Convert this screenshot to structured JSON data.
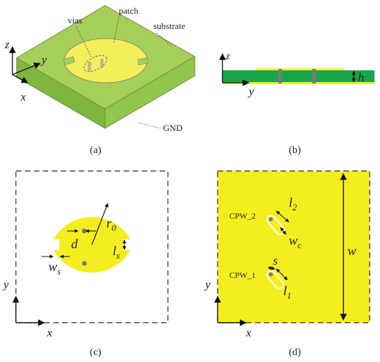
{
  "panel_a": {
    "caption": "(a)",
    "labels": {
      "vias": "vias",
      "patch": "patch",
      "substrate": "substrate",
      "gnd": "GND"
    },
    "axes": {
      "x": "x",
      "y": "y",
      "z": "z"
    }
  },
  "panel_b": {
    "caption": "(b)",
    "axes": {
      "y": "y",
      "z": "z"
    },
    "dims": {
      "h": "h"
    }
  },
  "panel_c": {
    "caption": "(c)",
    "axes": {
      "x": "x",
      "y": "y"
    },
    "dims": {
      "r0": "r",
      "r0_sub": "0",
      "d": "d",
      "ws": "w",
      "ws_sub": "s",
      "ls": "l",
      "ls_sub": "s"
    }
  },
  "panel_d": {
    "caption": "(d)",
    "axes": {
      "x": "x",
      "y": "y"
    },
    "ports": {
      "cpw2": "CPW_2",
      "cpw1": "CPW_1"
    },
    "dims": {
      "l2": "l",
      "l2_sub": "2",
      "wc": "w",
      "wc_sub": "c",
      "s": "s",
      "l1": "l",
      "l1_sub": "1",
      "w": "w"
    }
  },
  "colors": {
    "patch_yellow": "#f5ee1e",
    "substrate_green": "#8cc441",
    "substrate_dark": "#6ea834",
    "pcb_green": "#1aa54a",
    "via_gray": "#7a7a7a",
    "outline": "#333333"
  }
}
